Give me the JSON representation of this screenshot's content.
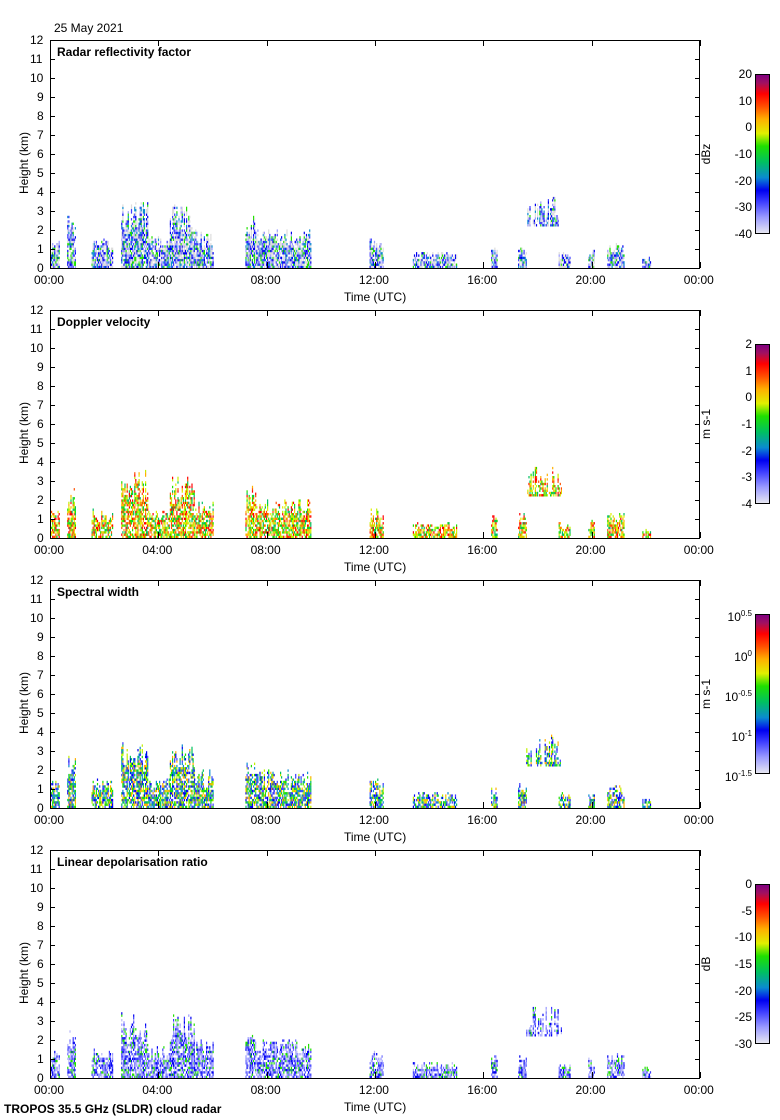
{
  "date": "25 May 2021",
  "footer": "TROPOS 35.5 GHz (SLDR) cloud radar",
  "chart_data": [
    {
      "type": "heatmap",
      "title": "Radar reflectivity factor",
      "xlabel": "Time (UTC)",
      "ylabel": "Height (km)",
      "xticks": [
        "00:00",
        "04:00",
        "08:00",
        "12:00",
        "16:00",
        "20:00",
        "00:00"
      ],
      "ylim": [
        0,
        12
      ],
      "yticks": [
        0,
        1,
        2,
        3,
        4,
        5,
        6,
        7,
        8,
        9,
        10,
        11,
        12
      ],
      "colorbar": {
        "label": "dBz",
        "ticks": [
          "20",
          "10",
          "0",
          "-10",
          "-20",
          "-30",
          "-40"
        ],
        "range": [
          -40,
          20
        ]
      }
    },
    {
      "type": "heatmap",
      "title": "Doppler velocity",
      "xlabel": "Time (UTC)",
      "ylabel": "Height (km)",
      "xticks": [
        "00:00",
        "04:00",
        "08:00",
        "12:00",
        "16:00",
        "20:00",
        "00:00"
      ],
      "ylim": [
        0,
        12
      ],
      "yticks": [
        0,
        1,
        2,
        3,
        4,
        5,
        6,
        7,
        8,
        9,
        10,
        11,
        12
      ],
      "colorbar": {
        "label": "m s-1",
        "ticks": [
          "2",
          "1",
          "0",
          "-1",
          "-2",
          "-3",
          "-4"
        ],
        "range": [
          -4,
          2
        ]
      }
    },
    {
      "type": "heatmap",
      "title": "Spectral width",
      "xlabel": "Time (UTC)",
      "ylabel": "Height (km)",
      "xticks": [
        "00:00",
        "04:00",
        "08:00",
        "12:00",
        "16:00",
        "20:00",
        "00:00"
      ],
      "ylim": [
        0,
        12
      ],
      "yticks": [
        0,
        1,
        2,
        3,
        4,
        5,
        6,
        7,
        8,
        9,
        10,
        11,
        12
      ],
      "colorbar": {
        "label": "m s-1",
        "ticks": [
          "10^0.5",
          "10^0",
          "10^-0.5",
          "10^-1",
          "10^-1.5"
        ],
        "range": [
          -1.5,
          0.5
        ],
        "log": true
      }
    },
    {
      "type": "heatmap",
      "title": "Linear depolarisation ratio",
      "xlabel": "Time (UTC)",
      "ylabel": "Height (km)",
      "xticks": [
        "00:00",
        "04:00",
        "08:00",
        "12:00",
        "16:00",
        "20:00",
        "00:00"
      ],
      "ylim": [
        0,
        12
      ],
      "yticks": [
        0,
        1,
        2,
        3,
        4,
        5,
        6,
        7,
        8,
        9,
        10,
        11,
        12
      ],
      "colorbar": {
        "label": "dB",
        "ticks": [
          "0",
          "-5",
          "-10",
          "-15",
          "-20",
          "-25",
          "-30"
        ],
        "range": [
          -30,
          0
        ]
      }
    }
  ],
  "echoes": [
    [
      0,
      0.3,
      0,
      1.5
    ],
    [
      0.6,
      0.9,
      0,
      2.8
    ],
    [
      1.5,
      2.3,
      0,
      1.5
    ],
    [
      2.6,
      3.6,
      0,
      3.5
    ],
    [
      3.6,
      4.4,
      0,
      1.6
    ],
    [
      4.4,
      5.3,
      0,
      3.3
    ],
    [
      5.3,
      6,
      0,
      2
    ],
    [
      7.2,
      7.6,
      0,
      2.7
    ],
    [
      7.6,
      9.6,
      0,
      2
    ],
    [
      11.8,
      12.3,
      0,
      1.5
    ],
    [
      13.4,
      15,
      0,
      0.8
    ],
    [
      16.3,
      16.5,
      0,
      1.2
    ],
    [
      17.3,
      17.6,
      0,
      1.3
    ],
    [
      17.6,
      18.9,
      2.2,
      3.8
    ],
    [
      18.8,
      19.2,
      0,
      0.8
    ],
    [
      19.9,
      20.1,
      0,
      1
    ],
    [
      20.6,
      21.2,
      0,
      1.3
    ],
    [
      21.9,
      22.2,
      0,
      0.6
    ]
  ],
  "palettes": [
    [
      "#dcdcdc",
      "#dcdcdc",
      "#dcdcdc",
      "#9a9aff",
      "#3b3bff",
      "#0000f0",
      "#0a8ad0",
      "#20e000"
    ],
    [
      "#20e000",
      "#c0f000",
      "#ffb000",
      "#ff5000",
      "#ff0000",
      "#00c060",
      "#e0f000"
    ],
    [
      "#0000f0",
      "#3b3bff",
      "#00c060",
      "#20e000",
      "#c0f000",
      "#0a8ad0",
      "#ffb000"
    ],
    [
      "#9a9aff",
      "#b8b8f8",
      "#3b3bff",
      "#7070ff",
      "#0000f0",
      "#20e000"
    ]
  ]
}
